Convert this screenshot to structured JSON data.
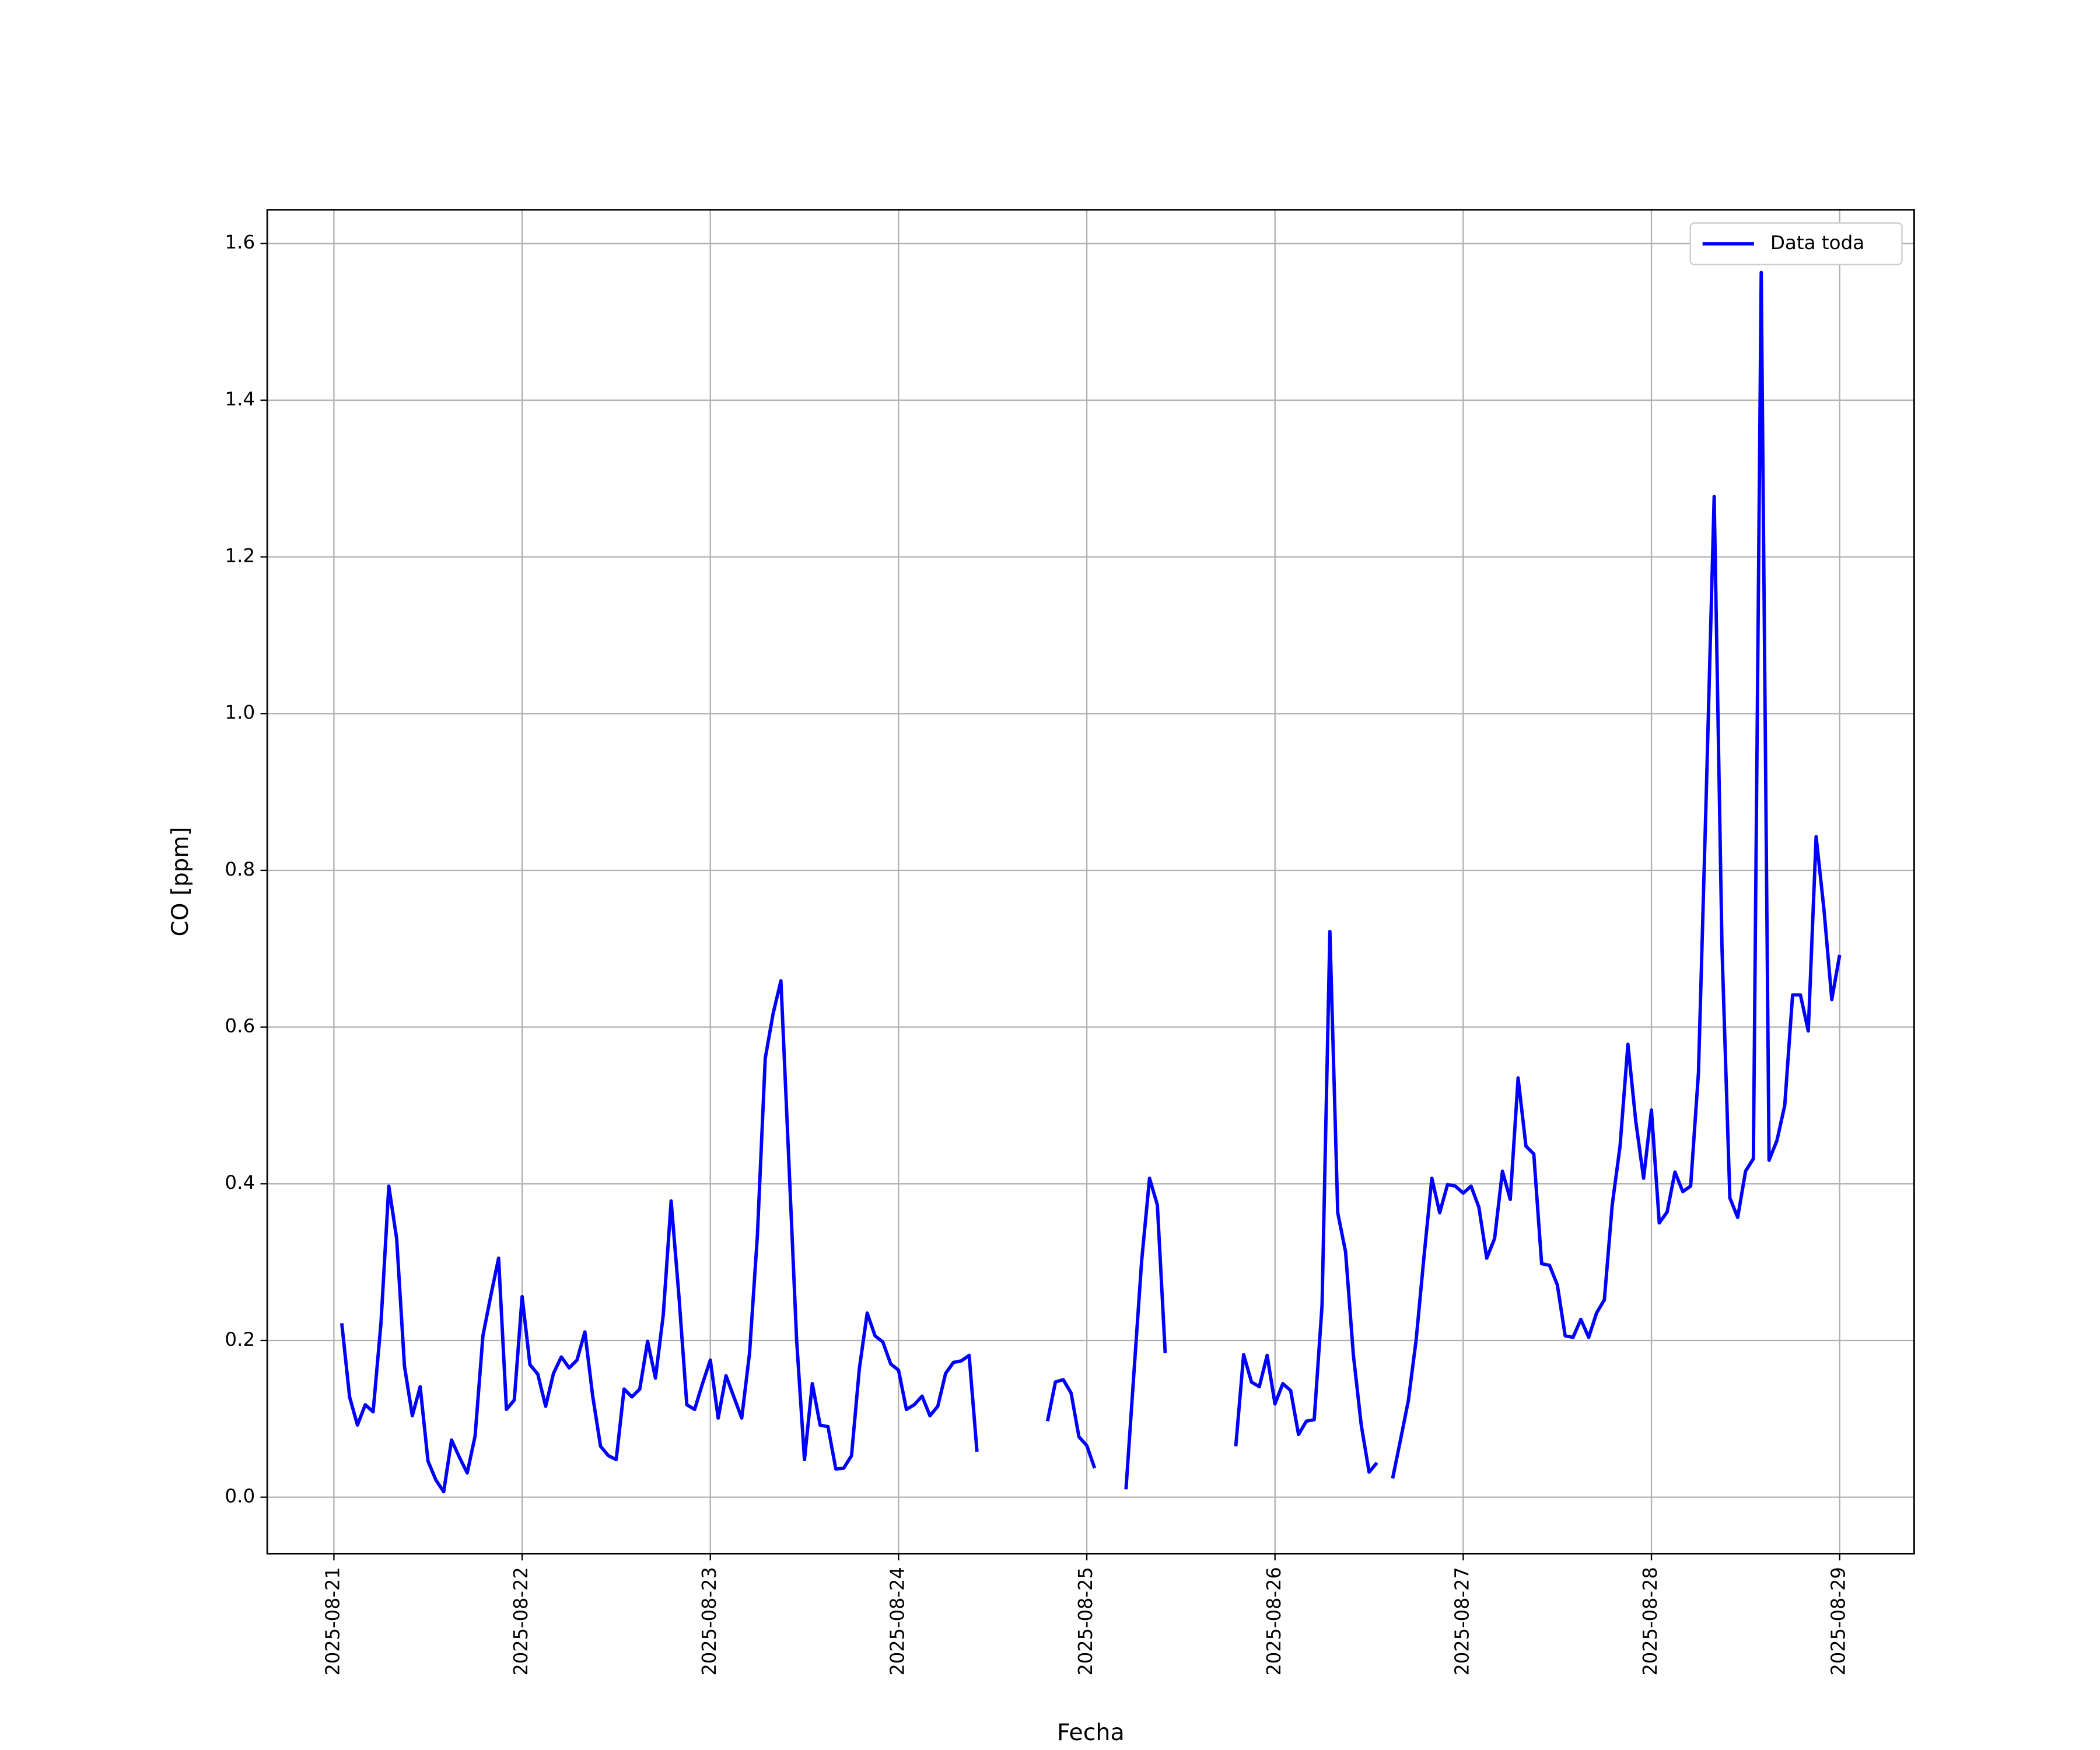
{
  "chart_data": {
    "type": "line",
    "xlabel": "Fecha",
    "ylabel": "CO [ppm]",
    "x": [
      "2025-08-21 01:00",
      "2025-08-21 02:00",
      "2025-08-21 03:00",
      "2025-08-21 04:00",
      "2025-08-21 05:00",
      "2025-08-21 06:00",
      "2025-08-21 07:00",
      "2025-08-21 08:00",
      "2025-08-21 09:00",
      "2025-08-21 10:00",
      "2025-08-21 11:00",
      "2025-08-21 12:00",
      "2025-08-21 13:00",
      "2025-08-21 14:00",
      "2025-08-21 15:00",
      "2025-08-21 16:00",
      "2025-08-21 17:00",
      "2025-08-21 18:00",
      "2025-08-21 19:00",
      "2025-08-21 20:00",
      "2025-08-21 21:00",
      "2025-08-21 22:00",
      "2025-08-21 23:00",
      "2025-08-22 00:00",
      "2025-08-22 01:00",
      "2025-08-22 02:00",
      "2025-08-22 03:00",
      "2025-08-22 04:00",
      "2025-08-22 05:00",
      "2025-08-22 06:00",
      "2025-08-22 07:00",
      "2025-08-22 08:00",
      "2025-08-22 09:00",
      "2025-08-22 10:00",
      "2025-08-22 11:00",
      "2025-08-22 12:00",
      "2025-08-22 13:00",
      "2025-08-22 14:00",
      "2025-08-22 15:00",
      "2025-08-22 16:00",
      "2025-08-22 17:00",
      "2025-08-22 18:00",
      "2025-08-22 19:00",
      "2025-08-22 20:00",
      "2025-08-22 21:00",
      "2025-08-22 22:00",
      "2025-08-22 23:00",
      "2025-08-23 00:00",
      "2025-08-23 01:00",
      "2025-08-23 02:00",
      "2025-08-23 03:00",
      "2025-08-23 04:00",
      "2025-08-23 05:00",
      "2025-08-23 06:00",
      "2025-08-23 07:00",
      "2025-08-23 08:00",
      "2025-08-23 09:00",
      "2025-08-23 10:00",
      "2025-08-23 11:00",
      "2025-08-23 12:00",
      "2025-08-23 13:00",
      "2025-08-23 14:00",
      "2025-08-23 15:00",
      "2025-08-23 16:00",
      "2025-08-23 17:00",
      "2025-08-23 18:00",
      "2025-08-23 19:00",
      "2025-08-23 20:00",
      "2025-08-23 21:00",
      "2025-08-23 22:00",
      "2025-08-23 23:00",
      "2025-08-24 00:00",
      "2025-08-24 01:00",
      "2025-08-24 02:00",
      "2025-08-24 03:00",
      "2025-08-24 04:00",
      "2025-08-24 05:00",
      "2025-08-24 06:00",
      "2025-08-24 07:00",
      "2025-08-24 08:00",
      "2025-08-24 09:00",
      "2025-08-24 10:00",
      "2025-08-24 11:00",
      "2025-08-24 12:00",
      "2025-08-24 13:00",
      "2025-08-24 14:00",
      "2025-08-24 15:00",
      "2025-08-24 16:00",
      "2025-08-24 17:00",
      "2025-08-24 18:00",
      "2025-08-24 19:00",
      "2025-08-24 20:00",
      "2025-08-24 21:00",
      "2025-08-24 22:00",
      "2025-08-24 23:00",
      "2025-08-25 00:00",
      "2025-08-25 01:00",
      "2025-08-25 02:00",
      "2025-08-25 03:00",
      "2025-08-25 04:00",
      "2025-08-25 05:00",
      "2025-08-25 06:00",
      "2025-08-25 07:00",
      "2025-08-25 08:00",
      "2025-08-25 09:00",
      "2025-08-25 10:00",
      "2025-08-25 11:00",
      "2025-08-25 12:00",
      "2025-08-25 13:00",
      "2025-08-25 14:00",
      "2025-08-25 15:00",
      "2025-08-25 16:00",
      "2025-08-25 17:00",
      "2025-08-25 18:00",
      "2025-08-25 19:00",
      "2025-08-25 20:00",
      "2025-08-25 21:00",
      "2025-08-25 22:00",
      "2025-08-25 23:00",
      "2025-08-26 00:00",
      "2025-08-26 01:00",
      "2025-08-26 02:00",
      "2025-08-26 03:00",
      "2025-08-26 04:00",
      "2025-08-26 05:00",
      "2025-08-26 06:00",
      "2025-08-26 07:00",
      "2025-08-26 08:00",
      "2025-08-26 09:00",
      "2025-08-26 10:00",
      "2025-08-26 11:00",
      "2025-08-26 12:00",
      "2025-08-26 13:00",
      "2025-08-26 14:00",
      "2025-08-26 15:00",
      "2025-08-26 16:00",
      "2025-08-26 17:00",
      "2025-08-26 18:00",
      "2025-08-26 19:00",
      "2025-08-26 20:00",
      "2025-08-26 21:00",
      "2025-08-26 22:00",
      "2025-08-26 23:00",
      "2025-08-27 00:00",
      "2025-08-27 01:00",
      "2025-08-27 02:00",
      "2025-08-27 03:00",
      "2025-08-27 04:00",
      "2025-08-27 05:00",
      "2025-08-27 06:00",
      "2025-08-27 07:00",
      "2025-08-27 08:00",
      "2025-08-27 09:00",
      "2025-08-27 10:00",
      "2025-08-27 11:00",
      "2025-08-27 12:00",
      "2025-08-27 13:00",
      "2025-08-27 14:00",
      "2025-08-27 15:00",
      "2025-08-27 16:00",
      "2025-08-27 17:00",
      "2025-08-27 18:00",
      "2025-08-27 19:00",
      "2025-08-27 20:00",
      "2025-08-27 21:00",
      "2025-08-27 22:00",
      "2025-08-27 23:00",
      "2025-08-28 00:00",
      "2025-08-28 01:00",
      "2025-08-28 02:00",
      "2025-08-28 03:00",
      "2025-08-28 04:00",
      "2025-08-28 05:00",
      "2025-08-28 06:00",
      "2025-08-28 07:00",
      "2025-08-28 08:00",
      "2025-08-28 09:00",
      "2025-08-28 10:00",
      "2025-08-28 11:00",
      "2025-08-28 12:00",
      "2025-08-28 13:00",
      "2025-08-28 14:00",
      "2025-08-28 15:00",
      "2025-08-28 16:00",
      "2025-08-28 17:00",
      "2025-08-28 18:00",
      "2025-08-28 19:00",
      "2025-08-28 20:00",
      "2025-08-28 21:00",
      "2025-08-28 22:00",
      "2025-08-28 23:00",
      "2025-08-29 00:00"
    ],
    "series": [
      {
        "name": "Data toda",
        "color": "#0000ff",
        "values": [
          0.222,
          0.128,
          0.092,
          0.118,
          0.109,
          0.222,
          0.397,
          0.33,
          0.167,
          0.104,
          0.141,
          0.046,
          0.022,
          0.007,
          0.073,
          0.051,
          0.031,
          0.078,
          0.206,
          0.257,
          0.305,
          0.112,
          0.124,
          0.256,
          0.169,
          0.157,
          0.116,
          0.158,
          0.179,
          0.165,
          0.175,
          0.211,
          0.129,
          0.065,
          0.053,
          0.048,
          0.138,
          0.128,
          0.138,
          0.199,
          0.152,
          0.233,
          0.378,
          0.256,
          0.118,
          0.112,
          0.145,
          0.175,
          0.101,
          0.155,
          0.128,
          0.101,
          0.184,
          0.334,
          0.56,
          0.617,
          0.659,
          0.431,
          0.201,
          0.048,
          0.145,
          0.092,
          0.09,
          0.036,
          0.037,
          0.053,
          0.164,
          0.235,
          0.206,
          0.198,
          0.17,
          0.162,
          0.112,
          0.118,
          0.129,
          0.104,
          0.116,
          0.158,
          0.172,
          0.174,
          0.181,
          0.058,
          null,
          null,
          null,
          null,
          null,
          null,
          null,
          null,
          0.097,
          0.147,
          0.15,
          0.133,
          0.077,
          0.066,
          0.037,
          null,
          null,
          null,
          0.01,
          0.157,
          0.302,
          0.407,
          0.373,
          0.184,
          null,
          null,
          null,
          null,
          null,
          null,
          null,
          null,
          0.065,
          0.182,
          0.147,
          0.141,
          0.181,
          0.119,
          0.145,
          0.136,
          0.08,
          0.097,
          0.099,
          0.245,
          0.722,
          0.363,
          0.313,
          0.181,
          0.092,
          0.032,
          0.044,
          null,
          0.024,
          0.073,
          0.123,
          0.201,
          0.307,
          0.407,
          0.363,
          0.399,
          0.397,
          0.388,
          0.397,
          0.37,
          0.305,
          0.33,
          0.416,
          0.38,
          0.535,
          0.448,
          0.438,
          0.298,
          0.296,
          0.271,
          0.206,
          0.204,
          0.227,
          0.204,
          0.235,
          0.252,
          0.373,
          0.448,
          0.578,
          0.48,
          0.407,
          0.494,
          0.35,
          0.364,
          0.415,
          0.39,
          0.397,
          0.542,
          0.9,
          1.277,
          0.7,
          0.382,
          0.357,
          0.416,
          0.432,
          1.563,
          0.43,
          0.455,
          0.5,
          0.641,
          0.641,
          0.595,
          0.843,
          0.75,
          0.635,
          0.692
        ]
      }
    ],
    "xlim": [
      "2025-08-20 15:30",
      "2025-08-29 09:30"
    ],
    "xticks": [
      "2025-08-21",
      "2025-08-22",
      "2025-08-23",
      "2025-08-24",
      "2025-08-25",
      "2025-08-26",
      "2025-08-27",
      "2025-08-28",
      "2025-08-29"
    ],
    "ylim": [
      -0.072,
      1.643
    ],
    "yticks": [
      {
        "value": 0,
        "label": "0.0"
      },
      0.2,
      0.4,
      0.6,
      0.8,
      {
        "value": 1,
        "label": "1.0"
      },
      1.2,
      1.4,
      1.6
    ],
    "grid": true,
    "legend": "upper right"
  }
}
